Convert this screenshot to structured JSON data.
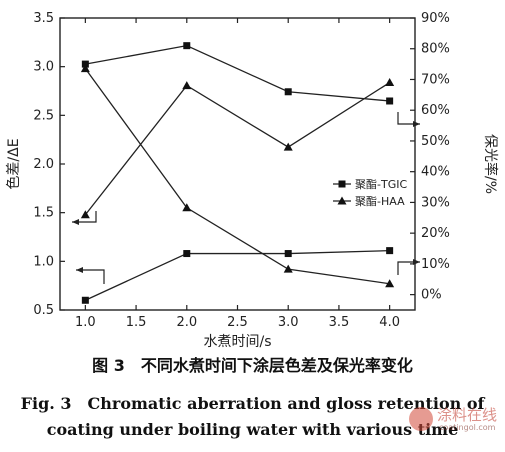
{
  "chart_data": {
    "type": "line",
    "xlabel": "水煮时间/s",
    "ylabel_left": "色差/ΔE",
    "ylabel_right": "保光率/%",
    "xlim": [
      0.75,
      4.25
    ],
    "ylim_left": [
      0.5,
      3.5
    ],
    "ylim_right": [
      -5,
      90
    ],
    "x_ticks": [
      "1.0",
      "1.5",
      "2.0",
      "2.5",
      "3.0",
      "3.5",
      "4.0"
    ],
    "y_left_ticks": [
      "0.5",
      "1.0",
      "1.5",
      "2.0",
      "2.5",
      "3.0",
      "3.5"
    ],
    "y_right_ticks": [
      "0%",
      "10%",
      "20%",
      "30%",
      "40%",
      "50%",
      "60%",
      "70%",
      "80%",
      "90%"
    ],
    "x": [
      1.0,
      2.0,
      3.0,
      4.0
    ],
    "series": [
      {
        "name": "聚酯-TGIC",
        "marker": "square",
        "metric": "color_difference",
        "axis": "left",
        "values": [
          0.6,
          1.08,
          1.08,
          1.11
        ]
      },
      {
        "name": "聚酯-TGIC",
        "marker": "square",
        "metric": "gloss_retention",
        "axis": "right",
        "values": [
          75,
          81,
          66,
          63
        ]
      },
      {
        "name": "聚酯-HAA",
        "marker": "triangle",
        "metric": "gloss_retention",
        "axis": "right",
        "values": [
          26,
          68,
          48,
          69
        ]
      },
      {
        "name": "聚酯-HAA",
        "marker": "triangle",
        "metric": "color_difference",
        "axis": "left",
        "values": [
          2.98,
          1.55,
          0.92,
          0.77
        ]
      }
    ],
    "legend": [
      "聚酯-TGIC",
      "聚酯-HAA"
    ],
    "legend_position": "right-center",
    "grid": false
  },
  "caption": {
    "cn": "图 3　不同水煮时间下涂层色差及保光率变化",
    "en_line1": "Fig. 3　Chromatic aberration and gloss retention of",
    "en_line2": "coating under boiling water with various time"
  },
  "watermark": {
    "text": "涂料在线",
    "url": "coatingol.com"
  }
}
